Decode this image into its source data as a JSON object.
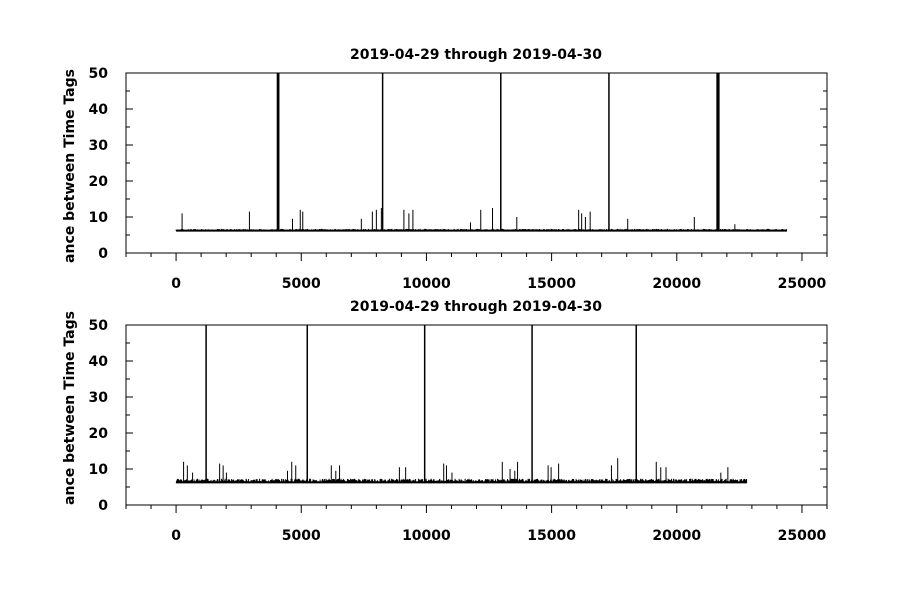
{
  "chart_data": [
    {
      "type": "line",
      "title": "2019-04-29 through 2019-04-30",
      "xlabel": "",
      "ylabel": "ance between Time Tags",
      "xlim": [
        -2000,
        26000
      ],
      "ylim": [
        0,
        50
      ],
      "x_ticks": [
        0,
        5000,
        10000,
        15000,
        20000,
        25000
      ],
      "x_tick_labels": [
        "0",
        "5000",
        "10000",
        "15000",
        "20000",
        "25000"
      ],
      "y_ticks": [
        0,
        10,
        20,
        30,
        40,
        50
      ],
      "y_tick_labels": [
        "0",
        "10",
        "20",
        "30",
        "40",
        "50"
      ],
      "grid": false,
      "series": [
        {
          "color": "#000000",
          "x_start": 0,
          "x_end": 24400,
          "baseline": 6.2,
          "noise": 0.5,
          "spikes": [
            [
              240,
              11
            ],
            [
              2930,
              11.5
            ],
            [
              4050,
              50
            ],
            [
              4060,
              50
            ],
            [
              4100,
              50
            ],
            [
              4650,
              9.5
            ],
            [
              4960,
              12
            ],
            [
              5060,
              11.5
            ],
            [
              8250,
              50
            ],
            [
              7400,
              9.5
            ],
            [
              7840,
              11.5
            ],
            [
              8000,
              12
            ],
            [
              8200,
              12.5
            ],
            [
              9100,
              12
            ],
            [
              9300,
              11
            ],
            [
              9460,
              12
            ],
            [
              11760,
              8.5
            ],
            [
              12170,
              12
            ],
            [
              12640,
              12.5
            ],
            [
              12970,
              50
            ],
            [
              13610,
              10
            ],
            [
              16080,
              12
            ],
            [
              16200,
              11
            ],
            [
              16350,
              10
            ],
            [
              16540,
              11.5
            ],
            [
              17290,
              50
            ],
            [
              18040,
              9.5
            ],
            [
              20700,
              10
            ],
            [
              21610,
              50
            ],
            [
              21640,
              50
            ],
            [
              21680,
              50
            ],
            [
              22320,
              8
            ]
          ]
        }
      ]
    },
    {
      "type": "line",
      "title": "2019-04-29 through 2019-04-30",
      "xlabel": "",
      "ylabel": "ance between Time Tags",
      "xlim": [
        -2000,
        26000
      ],
      "ylim": [
        0,
        50
      ],
      "x_ticks": [
        0,
        5000,
        10000,
        15000,
        20000,
        25000
      ],
      "x_tick_labels": [
        "0",
        "5000",
        "10000",
        "15000",
        "20000",
        "25000"
      ],
      "y_ticks": [
        0,
        10,
        20,
        30,
        40,
        50
      ],
      "y_tick_labels": [
        "0",
        "10",
        "20",
        "30",
        "40",
        "50"
      ],
      "grid": false,
      "series": [
        {
          "color": "#000000",
          "x_start": 0,
          "x_end": 22800,
          "baseline": 6.3,
          "noise": 1.0,
          "spikes": [
            [
              300,
              12
            ],
            [
              450,
              11
            ],
            [
              660,
              9
            ],
            [
              1200,
              50
            ],
            [
              1740,
              11.5
            ],
            [
              1880,
              11
            ],
            [
              2010,
              9
            ],
            [
              4450,
              9.5
            ],
            [
              4620,
              12
            ],
            [
              4780,
              11
            ],
            [
              5240,
              50
            ],
            [
              6200,
              11
            ],
            [
              6380,
              9.5
            ],
            [
              6530,
              11
            ],
            [
              8920,
              10.5
            ],
            [
              9170,
              10.5
            ],
            [
              9930,
              50
            ],
            [
              10690,
              11.5
            ],
            [
              10800,
              11
            ],
            [
              11020,
              9
            ],
            [
              13030,
              12
            ],
            [
              13340,
              10
            ],
            [
              13530,
              9.5
            ],
            [
              13640,
              12
            ],
            [
              14220,
              50
            ],
            [
              14860,
              11
            ],
            [
              14980,
              10.5
            ],
            [
              15280,
              11.5
            ],
            [
              17390,
              11
            ],
            [
              17640,
              13
            ],
            [
              18380,
              50
            ],
            [
              19180,
              12
            ],
            [
              19360,
              10.5
            ],
            [
              19570,
              10.5
            ],
            [
              21760,
              9
            ],
            [
              22040,
              10.5
            ]
          ]
        }
      ]
    }
  ]
}
